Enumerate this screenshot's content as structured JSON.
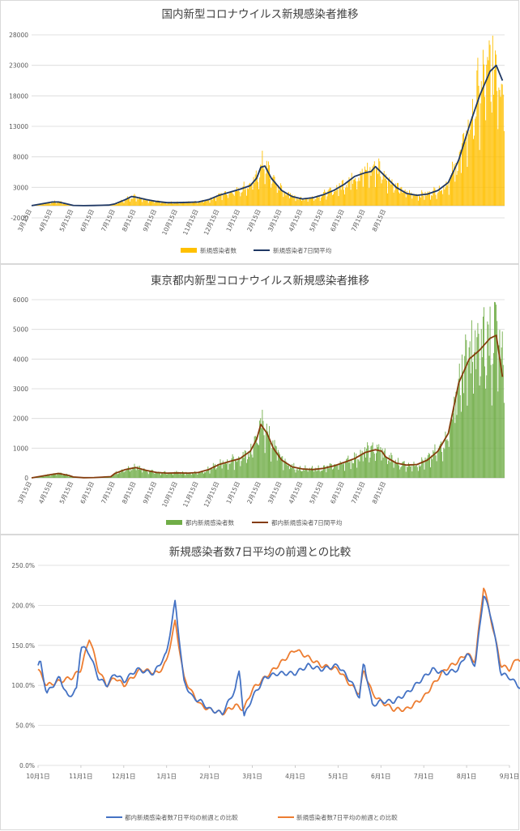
{
  "chart_data": [
    {
      "type": "bar+line",
      "title": "国内新型コロナウイルス新規感染者推移",
      "y_ticks": [
        "28000",
        "23000",
        "18000",
        "13000",
        "8000",
        "3000",
        "-2000"
      ],
      "ylim": [
        -2000,
        28000
      ],
      "x_ticks": [
        "3月15日",
        "4月15日",
        "5月15日",
        "6月15日",
        "7月15日",
        "8月15日",
        "9月15日",
        "10月15日",
        "11月15日",
        "12月15日",
        "1月15日",
        "2月15日",
        "3月15日",
        "4月15日",
        "5月15日",
        "6月15日",
        "7月15日",
        "8月15日"
      ],
      "legend": [
        "新規感染者数",
        "新規感染者7日間平均"
      ],
      "series_colors": [
        "#ffc000",
        "#1f3864"
      ],
      "avg_points": [
        [
          0,
          0
        ],
        [
          1,
          600
        ],
        [
          1.3,
          600
        ],
        [
          2,
          50
        ],
        [
          2.5,
          10
        ],
        [
          3,
          30
        ],
        [
          3.7,
          100
        ],
        [
          4,
          300
        ],
        [
          4.5,
          1000
        ],
        [
          4.8,
          1500
        ],
        [
          5,
          1400
        ],
        [
          5.5,
          1000
        ],
        [
          6,
          700
        ],
        [
          6.5,
          500
        ],
        [
          7,
          500
        ],
        [
          7.5,
          550
        ],
        [
          8,
          600
        ],
        [
          8.5,
          1000
        ],
        [
          9,
          1700
        ],
        [
          9.5,
          2200
        ],
        [
          10,
          2700
        ],
        [
          10.5,
          3300
        ],
        [
          10.8,
          4500
        ],
        [
          11,
          6300
        ],
        [
          11.2,
          6500
        ],
        [
          11.5,
          4500
        ],
        [
          12,
          2500
        ],
        [
          12.5,
          1500
        ],
        [
          13,
          1100
        ],
        [
          13.5,
          1300
        ],
        [
          14,
          1800
        ],
        [
          14.5,
          2500
        ],
        [
          15,
          3500
        ],
        [
          15.5,
          4800
        ],
        [
          16,
          5400
        ],
        [
          16.3,
          5600
        ],
        [
          16.5,
          6400
        ],
        [
          17,
          4700
        ],
        [
          17.5,
          3000
        ],
        [
          18,
          2000
        ],
        [
          18.5,
          1700
        ],
        [
          19,
          1900
        ],
        [
          19.5,
          2500
        ],
        [
          20,
          3800
        ],
        [
          20.5,
          7500
        ],
        [
          21,
          13000
        ],
        [
          21.5,
          18000
        ],
        [
          22,
          22000
        ],
        [
          22.3,
          23000
        ],
        [
          22.6,
          20500
        ]
      ]
    },
    {
      "type": "bar+line",
      "title": "東京都内新型コロナウイルス新規感染者推移",
      "y_ticks": [
        "6000",
        "5000",
        "4000",
        "3000",
        "2000",
        "1000",
        "0"
      ],
      "ylim": [
        0,
        6000
      ],
      "x_ticks": [
        "3月15日",
        "4月15日",
        "5月15日",
        "6月15日",
        "7月15日",
        "8月15日",
        "9月15日",
        "10月15日",
        "11月15日",
        "12月15日",
        "1月15日",
        "2月15日",
        "3月15日",
        "4月15日",
        "5月15日",
        "6月15日",
        "7月15日",
        "8月15日"
      ],
      "legend": [
        "都内新規感染者数",
        "都内新規感染者7日間平均"
      ],
      "series_colors": [
        "#70ad47",
        "#843c0c"
      ],
      "avg_points": [
        [
          0,
          0
        ],
        [
          1,
          120
        ],
        [
          1.3,
          150
        ],
        [
          1.8,
          80
        ],
        [
          2,
          30
        ],
        [
          2.5,
          5
        ],
        [
          3,
          10
        ],
        [
          3.8,
          40
        ],
        [
          4,
          150
        ],
        [
          4.5,
          280
        ],
        [
          5,
          350
        ],
        [
          5.5,
          250
        ],
        [
          6,
          180
        ],
        [
          6.5,
          160
        ],
        [
          7,
          170
        ],
        [
          7.5,
          160
        ],
        [
          8,
          180
        ],
        [
          8.5,
          280
        ],
        [
          9,
          450
        ],
        [
          9.5,
          550
        ],
        [
          10,
          650
        ],
        [
          10.5,
          900
        ],
        [
          10.8,
          1300
        ],
        [
          11,
          1800
        ],
        [
          11.3,
          1500
        ],
        [
          11.6,
          1000
        ],
        [
          12,
          600
        ],
        [
          12.5,
          370
        ],
        [
          13,
          300
        ],
        [
          13.5,
          280
        ],
        [
          14,
          320
        ],
        [
          14.5,
          400
        ],
        [
          15,
          520
        ],
        [
          15.5,
          650
        ],
        [
          16,
          850
        ],
        [
          16.5,
          950
        ],
        [
          16.8,
          900
        ],
        [
          17,
          700
        ],
        [
          17.5,
          500
        ],
        [
          18,
          430
        ],
        [
          18.5,
          450
        ],
        [
          19,
          600
        ],
        [
          19.5,
          900
        ],
        [
          20,
          1500
        ],
        [
          20.5,
          3200
        ],
        [
          21,
          4000
        ],
        [
          21.5,
          4300
        ],
        [
          22,
          4700
        ],
        [
          22.3,
          4800
        ],
        [
          22.6,
          3400
        ]
      ]
    },
    {
      "type": "line",
      "title": "新規感染者数7日平均の前週との比較",
      "y_ticks": [
        "250.0%",
        "200.0%",
        "150.0%",
        "100.0%",
        "50.0%",
        "0.0%"
      ],
      "ylim": [
        0,
        250
      ],
      "x_ticks": [
        "10月1日",
        "11月1日",
        "12月1日",
        "1月1日",
        "2月1日",
        "3月1日",
        "4月1日",
        "5月1日",
        "6月1日",
        "7月1日",
        "8月1日",
        "9月1日"
      ],
      "legend": [
        "都内新規感染者数7日平均の前週との比較",
        "新規感染者数7日平均の前週との比較"
      ],
      "series_colors": [
        "#4472c4",
        "#ed7d31"
      ],
      "tokyo_points": [
        [
          0,
          125
        ],
        [
          0.05,
          130
        ],
        [
          0.2,
          90
        ],
        [
          0.5,
          110
        ],
        [
          0.7,
          85
        ],
        [
          0.9,
          95
        ],
        [
          1.0,
          150
        ],
        [
          1.2,
          140
        ],
        [
          1.4,
          110
        ],
        [
          1.6,
          100
        ],
        [
          1.8,
          115
        ],
        [
          2.0,
          105
        ],
        [
          2.3,
          120
        ],
        [
          2.7,
          115
        ],
        [
          3.0,
          140
        ],
        [
          3.2,
          205
        ],
        [
          3.4,
          105
        ],
        [
          3.6,
          85
        ],
        [
          3.8,
          80
        ],
        [
          4.0,
          70
        ],
        [
          4.3,
          65
        ],
        [
          4.6,
          95
        ],
        [
          4.7,
          120
        ],
        [
          4.8,
          60
        ],
        [
          5.0,
          85
        ],
        [
          5.3,
          110
        ],
        [
          5.6,
          115
        ],
        [
          6.0,
          115
        ],
        [
          6.3,
          125
        ],
        [
          6.6,
          120
        ],
        [
          7.0,
          125
        ],
        [
          7.3,
          105
        ],
        [
          7.5,
          85
        ],
        [
          7.6,
          130
        ],
        [
          7.8,
          75
        ],
        [
          8.0,
          80
        ],
        [
          8.3,
          80
        ],
        [
          8.6,
          90
        ],
        [
          9.0,
          110
        ],
        [
          9.2,
          120
        ],
        [
          9.5,
          115
        ],
        [
          9.8,
          120
        ],
        [
          10.0,
          140
        ],
        [
          10.2,
          125
        ],
        [
          10.4,
          215
        ],
        [
          10.6,
          180
        ],
        [
          10.8,
          115
        ],
        [
          11.0,
          110
        ],
        [
          11.2,
          100
        ],
        [
          11.4,
          90
        ],
        [
          11.7,
          80
        ],
        [
          11.95,
          75
        ]
      ],
      "national_points": [
        [
          0,
          120
        ],
        [
          0.2,
          100
        ],
        [
          0.5,
          105
        ],
        [
          0.8,
          110
        ],
        [
          1.0,
          120
        ],
        [
          1.2,
          160
        ],
        [
          1.4,
          120
        ],
        [
          1.6,
          100
        ],
        [
          1.8,
          110
        ],
        [
          2.0,
          100
        ],
        [
          2.4,
          120
        ],
        [
          2.8,
          115
        ],
        [
          3.0,
          130
        ],
        [
          3.2,
          180
        ],
        [
          3.4,
          110
        ],
        [
          3.6,
          90
        ],
        [
          3.8,
          75
        ],
        [
          4.0,
          70
        ],
        [
          4.3,
          65
        ],
        [
          4.6,
          75
        ],
        [
          4.8,
          70
        ],
        [
          5.0,
          95
        ],
        [
          5.3,
          110
        ],
        [
          5.6,
          125
        ],
        [
          6.0,
          145
        ],
        [
          6.3,
          135
        ],
        [
          6.6,
          125
        ],
        [
          7.0,
          120
        ],
        [
          7.3,
          100
        ],
        [
          7.5,
          90
        ],
        [
          7.6,
          120
        ],
        [
          7.8,
          90
        ],
        [
          8.0,
          80
        ],
        [
          8.3,
          70
        ],
        [
          8.6,
          70
        ],
        [
          9.0,
          85
        ],
        [
          9.2,
          100
        ],
        [
          9.5,
          120
        ],
        [
          9.8,
          130
        ],
        [
          10.0,
          140
        ],
        [
          10.2,
          130
        ],
        [
          10.4,
          225
        ],
        [
          10.6,
          175
        ],
        [
          10.8,
          125
        ],
        [
          11.0,
          120
        ],
        [
          11.2,
          135
        ],
        [
          11.4,
          120
        ],
        [
          11.7,
          95
        ],
        [
          11.95,
          88
        ]
      ]
    }
  ]
}
